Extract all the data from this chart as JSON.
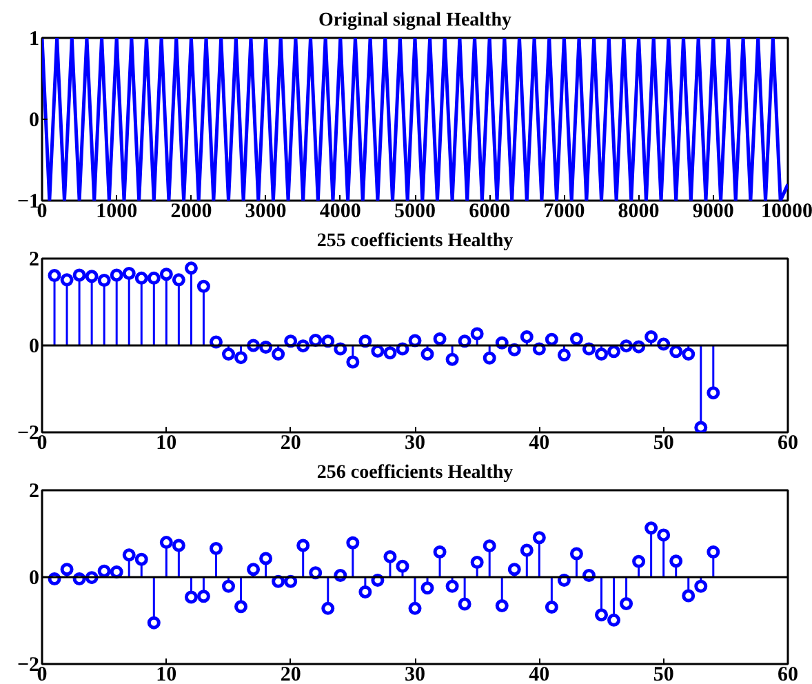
{
  "chart_data": [
    {
      "type": "line",
      "title": "Original signal Healthy",
      "line_style": "solid",
      "marker": "none",
      "x": [
        0,
        100,
        200,
        300,
        400,
        500,
        600,
        700,
        800,
        900,
        1000,
        1100,
        1200,
        1300,
        1400,
        1500,
        1600,
        1700,
        1800,
        1900,
        2000,
        2100,
        2200,
        2300,
        2400,
        2500,
        2600,
        2700,
        2800,
        2900,
        3000,
        3100,
        3200,
        3300,
        3400,
        3500,
        3600,
        3700,
        3800,
        3900,
        4000,
        4100,
        4200,
        4300,
        4400,
        4500,
        4600,
        4700,
        4800,
        4900,
        5000,
        5100,
        5200,
        5300,
        5400,
        5500,
        5600,
        5700,
        5800,
        5900,
        6000,
        6100,
        6200,
        6300,
        6400,
        6500,
        6600,
        6700,
        6800,
        6900,
        7000,
        7100,
        7200,
        7300,
        7400,
        7500,
        7600,
        7700,
        7800,
        7900,
        8000,
        8100,
        8200,
        8300,
        8400,
        8500,
        8600,
        8700,
        8800,
        8900,
        9000,
        9100,
        9200,
        9300,
        9400,
        9500,
        9600,
        9700,
        9800,
        9900,
        10000
      ],
      "series": [
        {
          "color": "#0000ff",
          "values": [
            1,
            -1,
            1,
            -1,
            1,
            -1,
            1,
            -1,
            1,
            -1,
            1,
            -1,
            1,
            -1,
            1,
            -1,
            1,
            -1,
            1,
            -1,
            1,
            -1,
            1,
            -1,
            1,
            -1,
            1,
            -1,
            1,
            -1,
            1,
            -1,
            1,
            -1,
            1,
            -1,
            1,
            -1,
            1,
            -1,
            1,
            -1,
            1,
            -1,
            1,
            -1,
            1,
            -1,
            1,
            -1,
            1,
            -1,
            1,
            -1,
            1,
            -1,
            1,
            -1,
            1,
            -1,
            1,
            -1,
            1,
            -1,
            1,
            -1,
            1,
            -1,
            1,
            -1,
            1,
            -1,
            1,
            -1,
            1,
            -1,
            1,
            -1,
            1,
            -1,
            1,
            -1,
            1,
            -1,
            1,
            -1,
            1,
            -1,
            1,
            -1,
            1,
            -1,
            1,
            -1,
            1,
            -1,
            1,
            -1,
            1,
            -1,
            -0.8
          ]
        }
      ],
      "xlim": [
        0,
        10000
      ],
      "xticks": [
        0,
        1000,
        2000,
        3000,
        4000,
        5000,
        6000,
        7000,
        8000,
        9000,
        10000
      ],
      "ylim": [
        -1,
        1
      ],
      "yticks": [
        -1,
        0,
        1
      ],
      "grid": false
    },
    {
      "type": "lollipop",
      "title": "255 coefficients Healthy",
      "marker": "circle",
      "x": [
        1,
        2,
        3,
        4,
        5,
        6,
        7,
        8,
        9,
        10,
        11,
        12,
        13,
        14,
        15,
        16,
        17,
        18,
        19,
        20,
        21,
        22,
        23,
        24,
        25,
        26,
        27,
        28,
        29,
        30,
        31,
        32,
        33,
        34,
        35,
        36,
        37,
        38,
        39,
        40,
        41,
        42,
        43,
        44,
        45,
        46,
        47,
        48,
        49,
        50,
        51,
        52,
        53,
        54
      ],
      "series": [
        {
          "color": "#0000ff",
          "values": [
            1.61,
            1.51,
            1.62,
            1.59,
            1.5,
            1.62,
            1.66,
            1.55,
            1.55,
            1.64,
            1.51,
            1.78,
            1.36,
            0.08,
            -0.2,
            -0.28,
            0.0,
            -0.04,
            -0.2,
            0.1,
            -0.01,
            0.12,
            0.1,
            -0.08,
            -0.38,
            0.1,
            -0.13,
            -0.17,
            -0.08,
            0.11,
            -0.2,
            0.15,
            -0.32,
            0.1,
            0.27,
            -0.29,
            0.06,
            -0.1,
            0.2,
            -0.08,
            0.14,
            -0.22,
            0.15,
            -0.08,
            -0.2,
            -0.14,
            -0.01,
            -0.03,
            0.2,
            0.03,
            -0.14,
            -0.2,
            -1.89,
            -1.09
          ]
        }
      ],
      "ref_lines": [
        {
          "axis": "y",
          "value": 0,
          "color": "#000000"
        }
      ],
      "xlim": [
        0,
        60
      ],
      "xticks": [
        0,
        10,
        20,
        30,
        40,
        50,
        60
      ],
      "ylim": [
        -2,
        2
      ],
      "yticks": [
        -2,
        0,
        2
      ],
      "grid": false
    },
    {
      "type": "lollipop",
      "title": "256 coefficients Healthy",
      "marker": "circle",
      "x": [
        1,
        2,
        3,
        4,
        5,
        6,
        7,
        8,
        9,
        10,
        11,
        12,
        13,
        14,
        15,
        16,
        17,
        18,
        19,
        20,
        21,
        22,
        23,
        24,
        25,
        26,
        27,
        28,
        29,
        30,
        31,
        32,
        33,
        34,
        35,
        36,
        37,
        38,
        39,
        40,
        41,
        42,
        43,
        44,
        45,
        46,
        47,
        48,
        49,
        50,
        51,
        52,
        53,
        54
      ],
      "series": [
        {
          "color": "#0000ff",
          "values": [
            -0.04,
            0.18,
            -0.04,
            -0.01,
            0.14,
            0.12,
            0.51,
            0.41,
            -1.05,
            0.8,
            0.73,
            -0.46,
            -0.44,
            0.66,
            -0.21,
            -0.68,
            0.18,
            0.43,
            -0.1,
            -0.1,
            0.73,
            0.1,
            -0.72,
            0.04,
            0.79,
            -0.34,
            -0.07,
            0.47,
            0.25,
            -0.72,
            -0.25,
            0.58,
            -0.21,
            -0.62,
            0.34,
            0.72,
            -0.66,
            0.18,
            0.62,
            0.91,
            -0.69,
            -0.07,
            0.54,
            0.04,
            -0.87,
            -0.99,
            -0.61,
            0.36,
            1.13,
            0.97,
            0.37,
            -0.43,
            -0.21,
            0.58
          ]
        }
      ],
      "ref_lines": [
        {
          "axis": "y",
          "value": 0,
          "color": "#000000"
        }
      ],
      "xlim": [
        0,
        60
      ],
      "xticks": [
        0,
        10,
        20,
        30,
        40,
        50,
        60
      ],
      "ylim": [
        -2,
        2
      ],
      "yticks": [
        -2,
        0,
        2
      ],
      "grid": false
    }
  ]
}
